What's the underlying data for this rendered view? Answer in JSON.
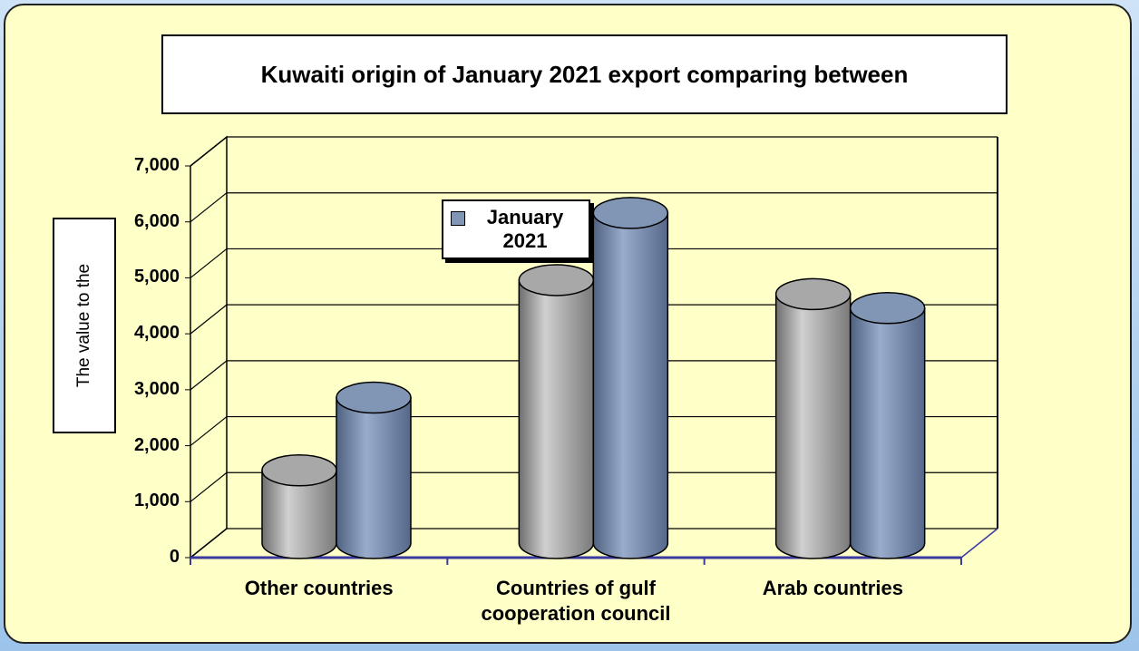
{
  "chart_data": {
    "type": "bar3d",
    "title": "Kuwaiti origin of January 2021 export comparing between",
    "y_label": "The value to the",
    "categories": [
      "Other countries",
      "Countries of gulf cooperation council",
      "Arab countries"
    ],
    "series": [
      {
        "color": "#a8a8a8",
        "values": [
          1300,
          4700,
          4450
        ]
      },
      {
        "name": "January 2021",
        "color": "#8096b4",
        "values": [
          2600,
          5900,
          4200
        ]
      }
    ],
    "ylim": [
      0,
      7000
    ],
    "yticks": [
      0,
      {
        "value": 1000,
        "label": "1,000"
      },
      {
        "value": 2000,
        "label": "2,000"
      },
      {
        "value": 3000,
        "label": "3,000"
      },
      {
        "value": 4000,
        "label": "4,000"
      },
      {
        "value": 5000,
        "label": "5,000"
      },
      {
        "value": 6000,
        "label": "6,000"
      },
      {
        "value": 7000,
        "label": "7,000"
      }
    ],
    "grid": true
  }
}
